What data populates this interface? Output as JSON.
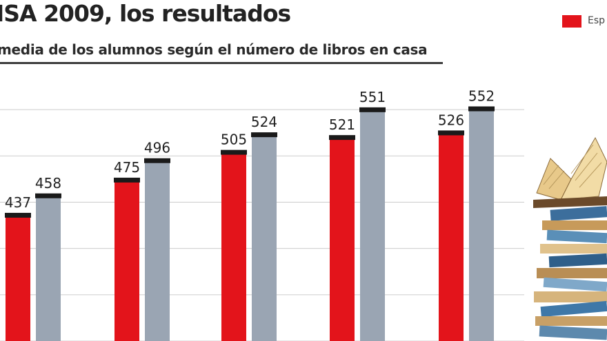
{
  "header": {
    "title": "ISA 2009, los resultados",
    "subtitle": "media de los alumnos según el número de libros en casa"
  },
  "legend": {
    "items": [
      {
        "label": "Esp",
        "color": "#e3141b"
      }
    ]
  },
  "colors": {
    "series_a": "#e3141b",
    "series_b": "#9aa5b3",
    "cap": "#1a1a1a",
    "grid": "#cccccc"
  },
  "decoration": {
    "icon": "book-stack-icon"
  },
  "chart_data": {
    "type": "bar",
    "title": "ISA 2009, los resultados",
    "subtitle": "media de los alumnos según el número de libros en casa",
    "categories": [
      "",
      "",
      "",
      "",
      ""
    ],
    "series": [
      {
        "name": "Esp",
        "values": [
          437,
          475,
          505,
          521,
          526
        ]
      },
      {
        "values": [
          458,
          496,
          524,
          551,
          552
        ]
      }
    ],
    "ylim": [
      300,
      600
    ],
    "grid": true,
    "legend_position": "top-right"
  }
}
